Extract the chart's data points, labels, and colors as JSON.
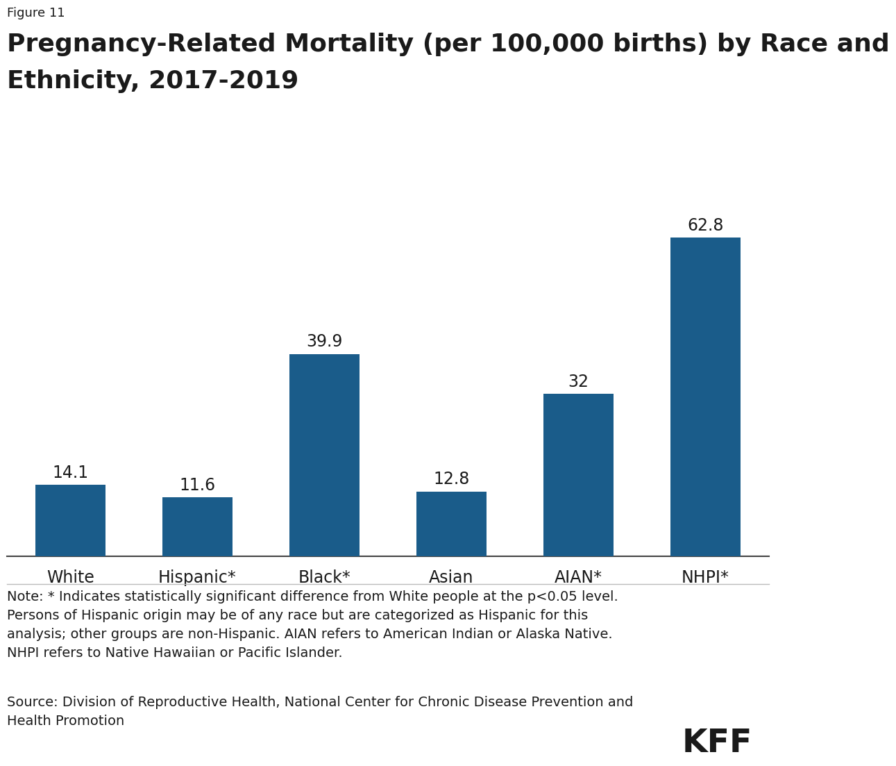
{
  "figure_label": "Figure 11",
  "title_line1": "Pregnancy-Related Mortality (per 100,000 births) by Race and",
  "title_line2": "Ethnicity, 2017-2019",
  "categories": [
    "White",
    "Hispanic*",
    "Black*",
    "Asian",
    "AIAN*",
    "NHPI*"
  ],
  "values": [
    14.1,
    11.6,
    39.9,
    12.8,
    32.0,
    62.8
  ],
  "bar_color": "#1a5c8a",
  "bar_labels": [
    "14.1",
    "11.6",
    "39.9",
    "12.8",
    "32",
    "62.8"
  ],
  "ylim": [
    0,
    72
  ],
  "note_text": "Note: * Indicates statistically significant difference from White people at the p<0.05 level.\nPersons of Hispanic origin may be of any race but are categorized as Hispanic for this\nanalysis; other groups are non-Hispanic. AIAN refers to American Indian or Alaska Native.\nNHPI refers to Native Hawaiian or Pacific Islander.",
  "source_text": "Source: Division of Reproductive Health, National Center for Chronic Disease Prevention and\nHealth Promotion",
  "kff_text": "KFF",
  "background_color": "#ffffff",
  "text_color": "#1a1a1a",
  "figure_label_fontsize": 13,
  "title_fontsize": 26,
  "bar_label_fontsize": 17,
  "tick_label_fontsize": 17,
  "note_fontsize": 14,
  "source_fontsize": 14,
  "kff_fontsize": 34
}
